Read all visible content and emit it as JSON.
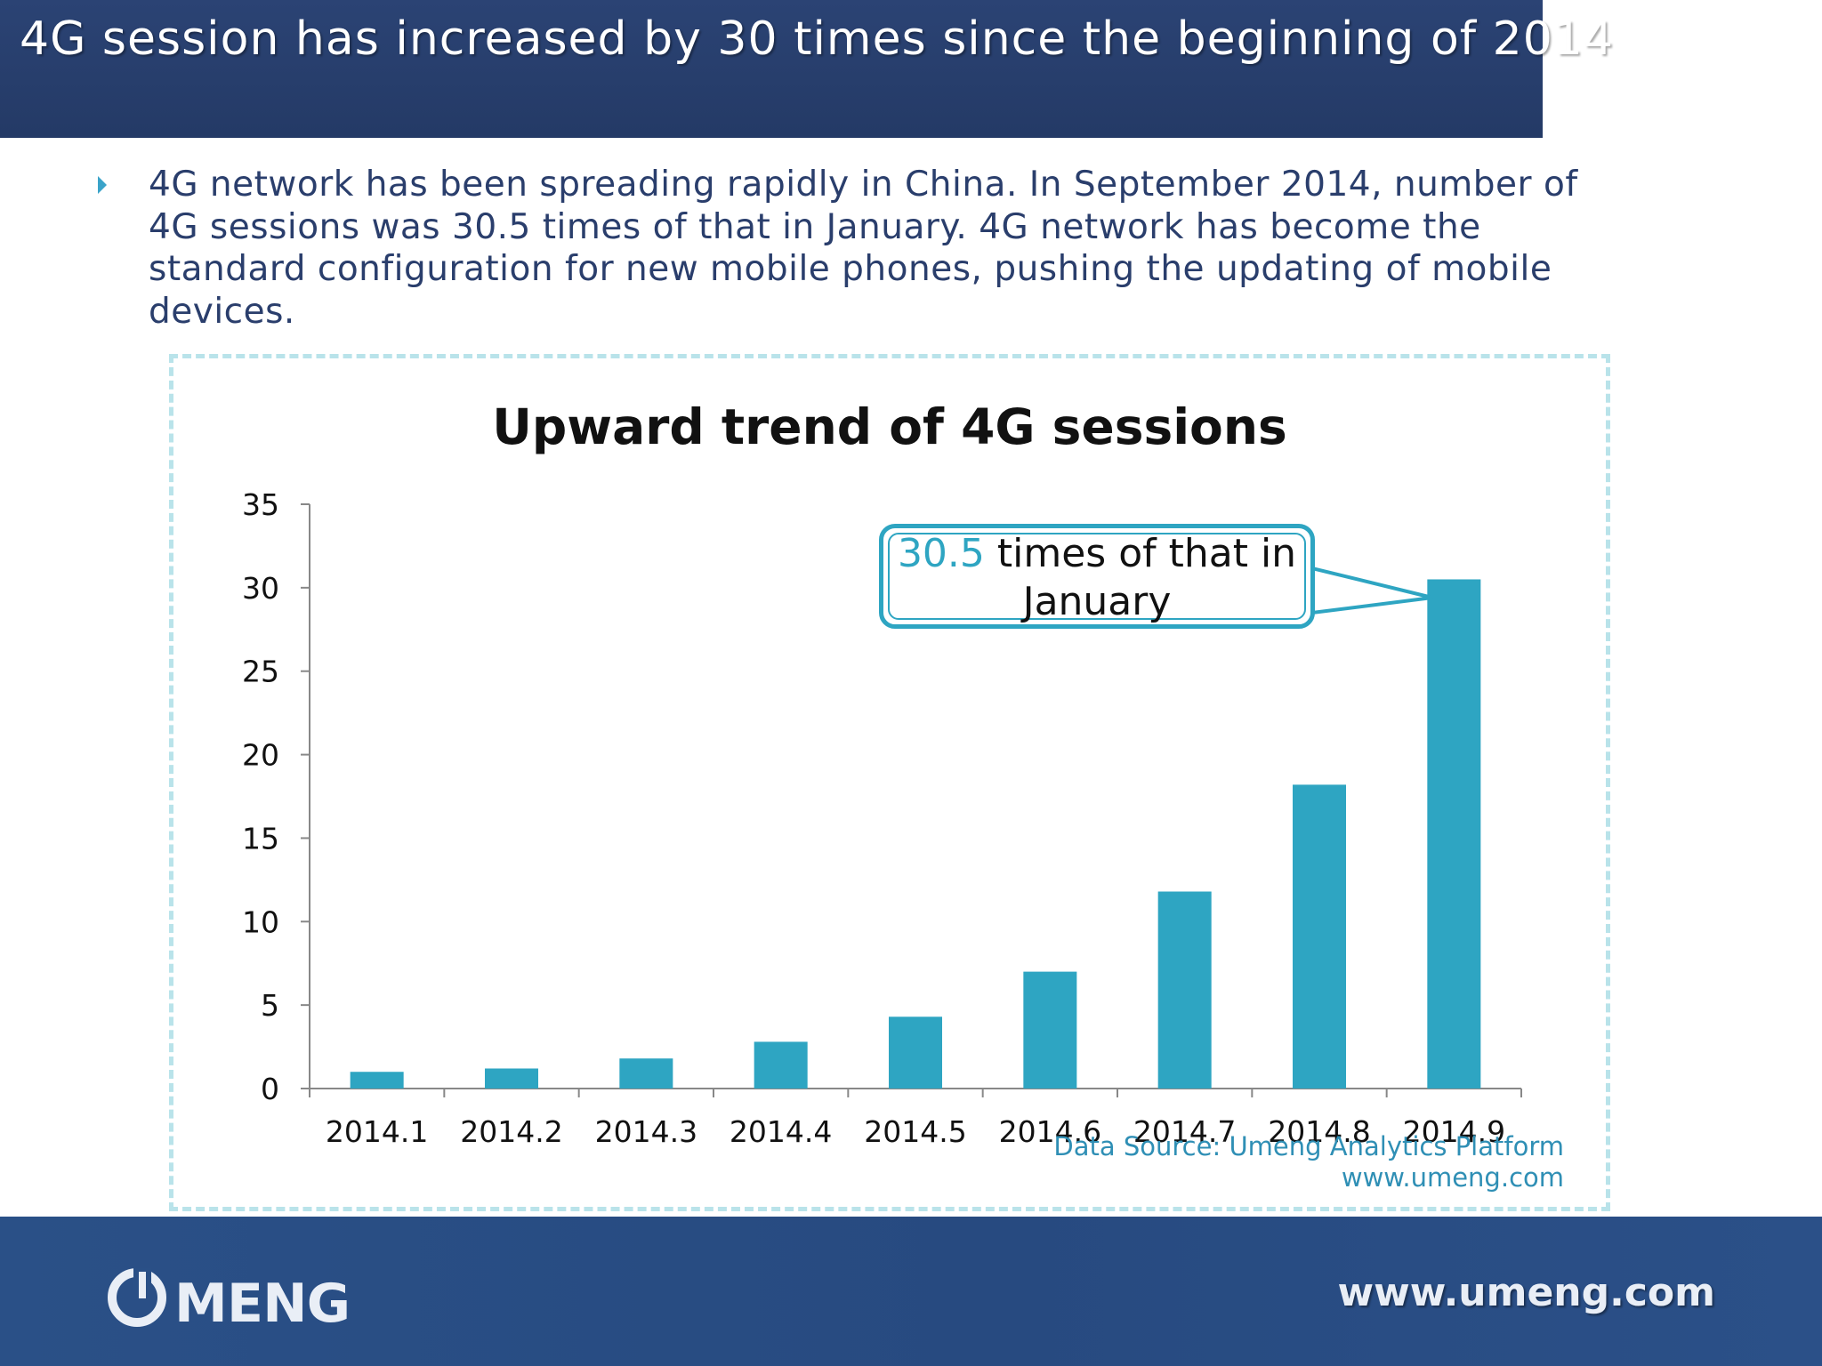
{
  "header": {
    "title": "4G session has increased by 30 times since the beginning of 2014"
  },
  "bullet": {
    "text": "4G network has been spreading rapidly in China. In September 2014, number of 4G sessions was 30.5 times of that in January. 4G network has become the standard configuration for new mobile phones, pushing the updating of mobile devices."
  },
  "callout": {
    "number": "30.5",
    "text": " times of that in January"
  },
  "source": {
    "line1": "Data Source: Umeng Analytics Platform",
    "line2": "www.umeng.com"
  },
  "footer": {
    "logo_text": "UMENG",
    "url": "www.umeng.com"
  },
  "colors": {
    "bar": "#2ea5c2",
    "header": "#2b4374",
    "footer": "#2a5087",
    "frame": "#b9e3ea"
  },
  "chart_data": {
    "type": "bar",
    "title": "Upward trend of 4G sessions",
    "categories": [
      "2014.1",
      "2014.2",
      "2014.3",
      "2014.4",
      "2014.5",
      "2014.6",
      "2014.7",
      "2014.8",
      "2014.9"
    ],
    "values": [
      1.0,
      1.2,
      1.8,
      2.8,
      4.3,
      7.0,
      11.8,
      18.2,
      30.5
    ],
    "ylim": [
      0,
      35
    ],
    "yticks": [
      0,
      5,
      10,
      15,
      20,
      25,
      30,
      35
    ],
    "xlabel": "",
    "ylabel": "",
    "grid": false,
    "legend": "none"
  }
}
